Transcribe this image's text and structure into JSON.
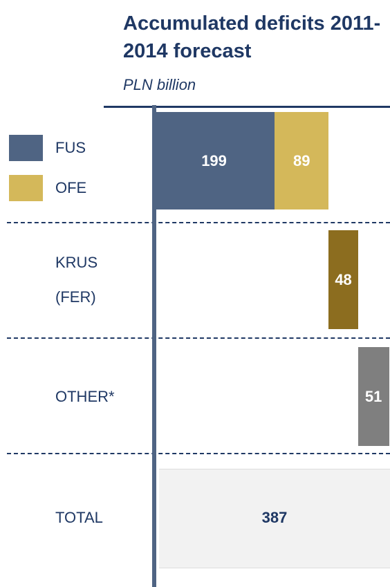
{
  "chart_data": {
    "type": "waterfall",
    "title": "Accumulated deficits 2011-2014 forecast",
    "subtitle": "PLN billion",
    "series": [
      {
        "name": "FUS",
        "color": "#4f6483",
        "values": [
          199
        ]
      },
      {
        "name": "OFE",
        "color": "#d4b85a",
        "values": [
          89
        ]
      }
    ],
    "steps": [
      {
        "label": "KRUS (FER)",
        "value": 48,
        "color": "#8c6d1f"
      },
      {
        "label": "OTHER*",
        "value": 51,
        "color": "#7f7f7f"
      }
    ],
    "total": {
      "label": "TOTAL",
      "value": 387
    }
  }
}
